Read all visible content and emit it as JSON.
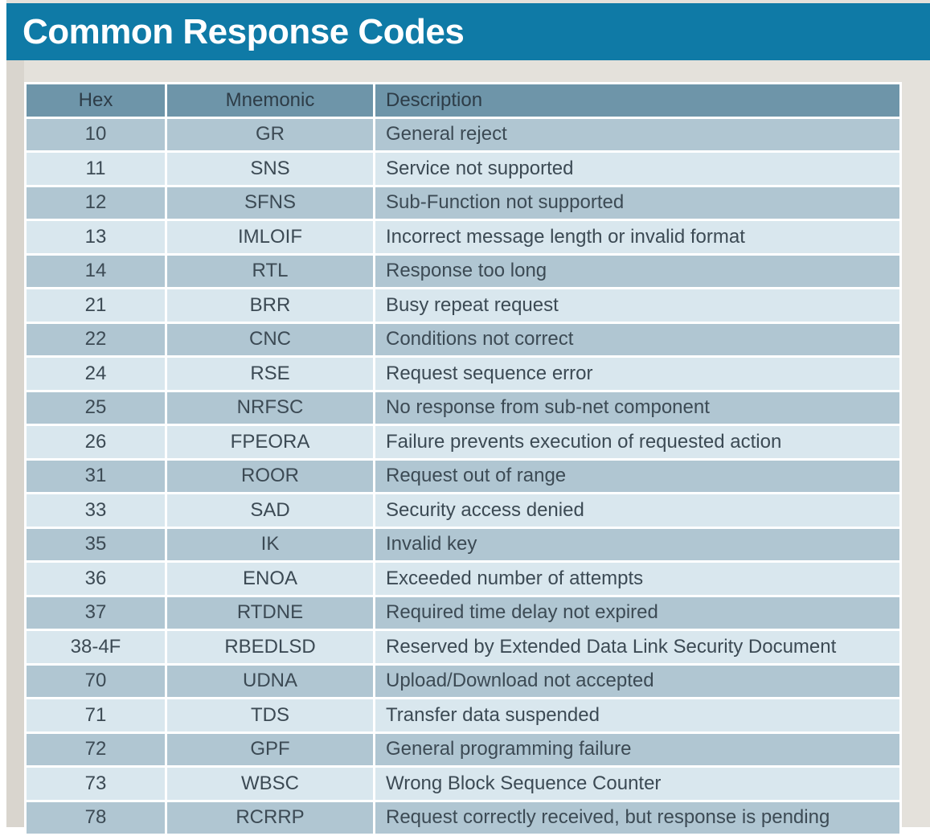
{
  "page": {
    "title": "Common Response Codes"
  },
  "colors": {
    "banner_bg": "#0f7aa6",
    "banner_text": "#ffffff",
    "page_bg": "#e4e1db",
    "header_row_bg": "#6e95a9",
    "header_text": "#2d3c47",
    "row_dark_bg": "#b0c6d2",
    "row_light_bg": "#d9e7ee",
    "cell_text": "#3c4a54"
  },
  "table": {
    "columns": [
      "Hex",
      "Mnemonic",
      "Description"
    ],
    "rows": [
      {
        "hex": "10",
        "mnemonic": "GR",
        "description": "General reject"
      },
      {
        "hex": "11",
        "mnemonic": "SNS",
        "description": "Service not supported"
      },
      {
        "hex": "12",
        "mnemonic": "SFNS",
        "description": "Sub-Function not supported"
      },
      {
        "hex": "13",
        "mnemonic": "IMLOIF",
        "description": "Incorrect message length or invalid format"
      },
      {
        "hex": "14",
        "mnemonic": "RTL",
        "description": "Response too long"
      },
      {
        "hex": "21",
        "mnemonic": "BRR",
        "description": "Busy repeat request"
      },
      {
        "hex": "22",
        "mnemonic": "CNC",
        "description": "Conditions not correct"
      },
      {
        "hex": "24",
        "mnemonic": "RSE",
        "description": "Request sequence error"
      },
      {
        "hex": "25",
        "mnemonic": "NRFSC",
        "description": "No response from sub-net component"
      },
      {
        "hex": "26",
        "mnemonic": "FPEORA",
        "description": "Failure prevents execution of requested action"
      },
      {
        "hex": "31",
        "mnemonic": "ROOR",
        "description": "Request out of range"
      },
      {
        "hex": "33",
        "mnemonic": "SAD",
        "description": "Security access denied"
      },
      {
        "hex": "35",
        "mnemonic": "IK",
        "description": "Invalid key"
      },
      {
        "hex": "36",
        "mnemonic": "ENOA",
        "description": "Exceeded number of attempts"
      },
      {
        "hex": "37",
        "mnemonic": "RTDNE",
        "description": "Required time delay not expired"
      },
      {
        "hex": "38-4F",
        "mnemonic": "RBEDLSD",
        "description": "Reserved by Extended Data Link Security Document"
      },
      {
        "hex": "70",
        "mnemonic": "UDNA",
        "description": "Upload/Download not accepted"
      },
      {
        "hex": "71",
        "mnemonic": "TDS",
        "description": "Transfer data suspended"
      },
      {
        "hex": "72",
        "mnemonic": "GPF",
        "description": "General programming failure"
      },
      {
        "hex": "73",
        "mnemonic": "WBSC",
        "description": "Wrong Block Sequence Counter"
      },
      {
        "hex": "78",
        "mnemonic": "RCRRP",
        "description": "Request correctly received, but response is pending"
      }
    ]
  }
}
